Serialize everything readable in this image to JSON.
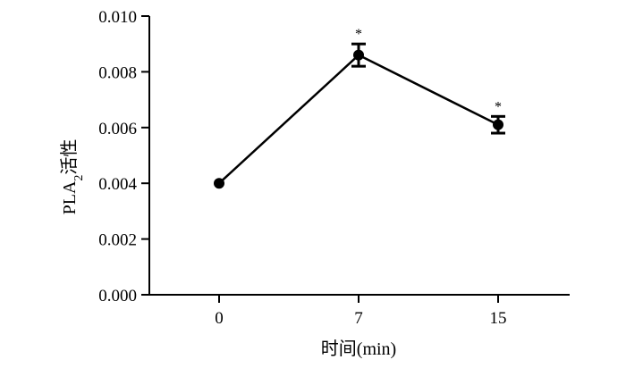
{
  "chart_data": {
    "type": "line",
    "title": "",
    "xlabel": "时间(min)",
    "ylabel_main": "PLA",
    "ylabel_sub": "2",
    "ylabel_tail": "活性",
    "x_ticks": [
      "0",
      "7",
      "15"
    ],
    "y_ticks": [
      "0.000",
      "0.002",
      "0.004",
      "0.006",
      "0.008",
      "0.010"
    ],
    "ylim": [
      0,
      0.01
    ],
    "series": [
      {
        "points": [
          {
            "x": "0",
            "y": 0.004,
            "err": 0,
            "sig": ""
          },
          {
            "x": "7",
            "y": 0.0086,
            "err": 0.0004,
            "sig": "*"
          },
          {
            "x": "15",
            "y": 0.0061,
            "err": 0.0003,
            "sig": "*"
          }
        ]
      }
    ],
    "grid": false,
    "line_color": "#000000"
  }
}
